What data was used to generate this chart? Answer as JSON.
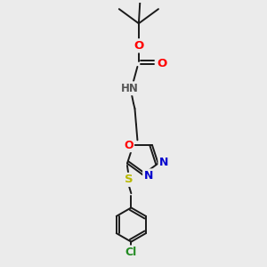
{
  "bg_color": "#ebebeb",
  "bond_color": "#1a1a1a",
  "atom_colors": {
    "O": "#ff0000",
    "N": "#0000cd",
    "S": "#b8b800",
    "Cl": "#228b22",
    "H": "#555555",
    "C": "#1a1a1a"
  },
  "font_size": 8.5,
  "bond_width": 1.4
}
